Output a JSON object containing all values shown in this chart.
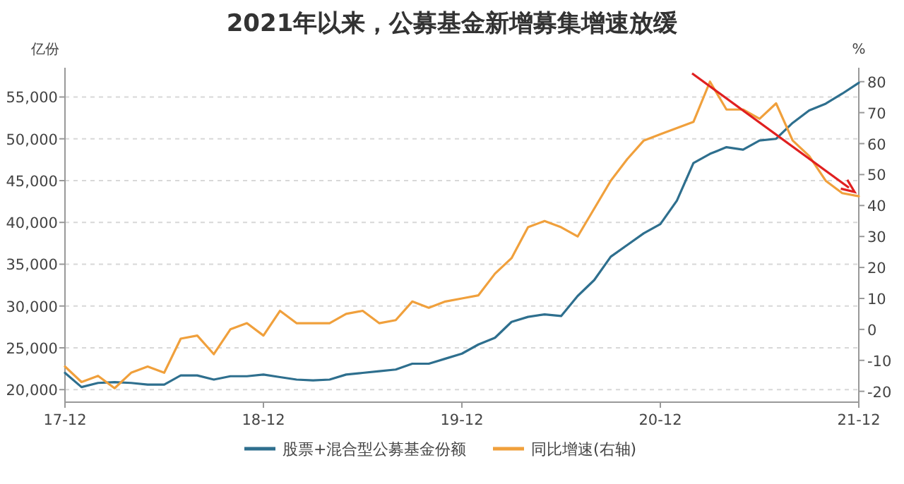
{
  "chart_data": {
    "type": "line",
    "title": "2021年以来，公募基金新增募集增速放缓",
    "ylabel": "亿份",
    "y2label": "%",
    "x": [
      "2017-12",
      "2018-01",
      "2018-02",
      "2018-03",
      "2018-04",
      "2018-05",
      "2018-06",
      "2018-07",
      "2018-08",
      "2018-09",
      "2018-10",
      "2018-11",
      "2018-12",
      "2019-01",
      "2019-02",
      "2019-03",
      "2019-04",
      "2019-05",
      "2019-06",
      "2019-07",
      "2019-08",
      "2019-09",
      "2019-10",
      "2019-11",
      "2019-12",
      "2020-01",
      "2020-02",
      "2020-03",
      "2020-04",
      "2020-05",
      "2020-06",
      "2020-07",
      "2020-08",
      "2020-09",
      "2020-10",
      "2020-11",
      "2020-12",
      "2021-01",
      "2021-02",
      "2021-03",
      "2021-04",
      "2021-05",
      "2021-06",
      "2021-07",
      "2021-08",
      "2021-09",
      "2021-10",
      "2021-11",
      "2021-12"
    ],
    "series": [
      {
        "name": "股票+混合型公募基金份额",
        "color": "#2e6f8e",
        "values": [
          22000,
          20300,
          20800,
          20900,
          20800,
          20600,
          20600,
          21700,
          21700,
          21200,
          21600,
          21600,
          21800,
          21500,
          21200,
          21100,
          21200,
          21800,
          22000,
          22200,
          22400,
          23100,
          23100,
          23700,
          24300,
          25400,
          26200,
          28100,
          28700,
          29000,
          28800,
          31200,
          33100,
          35900,
          37300,
          38700,
          39800,
          42600,
          47100,
          48200,
          49000,
          48700,
          49800,
          50000,
          51900,
          53400,
          54200,
          55400,
          56700
        ]
      },
      {
        "name": "同比增速(右轴)",
        "color": "#f0a03c",
        "axis": "y2",
        "values": [
          -12,
          -17,
          -15,
          -19,
          -14,
          -12,
          -14,
          -3,
          -2,
          -8,
          0,
          2,
          -2,
          6,
          2,
          2,
          2,
          5,
          6,
          2,
          3,
          9,
          7,
          9,
          10,
          11,
          18,
          23,
          33,
          35,
          33,
          30,
          39,
          48,
          55,
          61,
          63,
          65,
          67,
          80,
          71,
          71,
          68,
          73,
          61,
          56,
          48,
          44,
          43
        ]
      }
    ],
    "xlim": [
      "2017-12",
      "2021-12"
    ],
    "xticks": [
      {
        "value": "2017-12",
        "label": "17-12"
      },
      {
        "value": "2018-12",
        "label": "18-12"
      },
      {
        "value": "2019-12",
        "label": "19-12"
      },
      {
        "value": "2020-12",
        "label": "20-12"
      },
      {
        "value": "2021-12",
        "label": "21-12"
      }
    ],
    "ylim": [
      18500,
      58500
    ],
    "yticks": [
      {
        "value": 20000,
        "label": "20,000"
      },
      {
        "value": 25000,
        "label": "25,000"
      },
      {
        "value": 30000,
        "label": "30,000"
      },
      {
        "value": 35000,
        "label": "35,000"
      },
      {
        "value": 40000,
        "label": "40,000"
      },
      {
        "value": 45000,
        "label": "45,000"
      },
      {
        "value": 50000,
        "label": "50,000"
      },
      {
        "value": 55000,
        "label": "55,000"
      }
    ],
    "y2lim": [
      -23.5,
      84.5
    ],
    "y2ticks": [
      -20,
      -10,
      0,
      10,
      20,
      30,
      40,
      50,
      60,
      70,
      80
    ],
    "grid": "y",
    "legend": "bottom",
    "marker": "none",
    "line_style": "solid"
  }
}
